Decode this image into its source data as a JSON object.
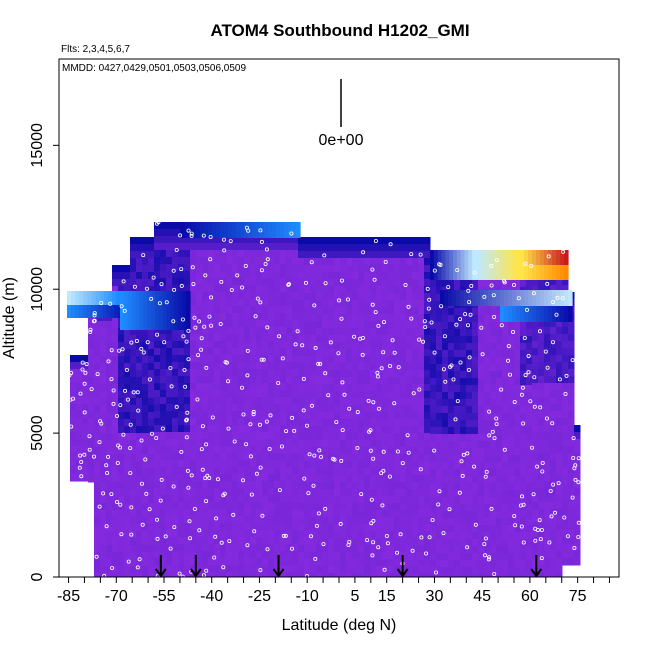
{
  "chart_data": {
    "type": "heatmap",
    "title": "ATOM4 Southbound H1202_GMI",
    "flights_label": "Flts: 2,3,4,5,6,7",
    "dates_label": "MMDD: 0427,0429,0501,0503,0506,0509",
    "xlabel": "Latitude (deg N)",
    "ylabel": "Altitude (m)",
    "xlim": [
      -88,
      88
    ],
    "ylim": [
      0,
      18000
    ],
    "x_tick_labels": [
      "-85",
      "-70",
      "-55",
      "-40",
      "-25",
      "-10",
      "5",
      "15",
      "30",
      "45",
      "60",
      "75"
    ],
    "x_tick_values": [
      -85,
      -70,
      -55,
      -40,
      -25,
      -10,
      5,
      15,
      30,
      45,
      60,
      75
    ],
    "y_tick_labels": [
      "0",
      "5000",
      "10000",
      "15000"
    ],
    "y_tick_values": [
      0,
      5000,
      10000,
      15000
    ],
    "scale_label": "0e+00",
    "arrow_latitudes": [
      -56,
      -45,
      -19,
      20,
      62
    ],
    "colors": {
      "background": "#8a2be2",
      "dark_blue": "#0a0aa8",
      "blue": "#1e8cff",
      "light_blue": "#bfe8ff",
      "yellow": "#ffe54a",
      "red": "#c81a1a"
    }
  }
}
